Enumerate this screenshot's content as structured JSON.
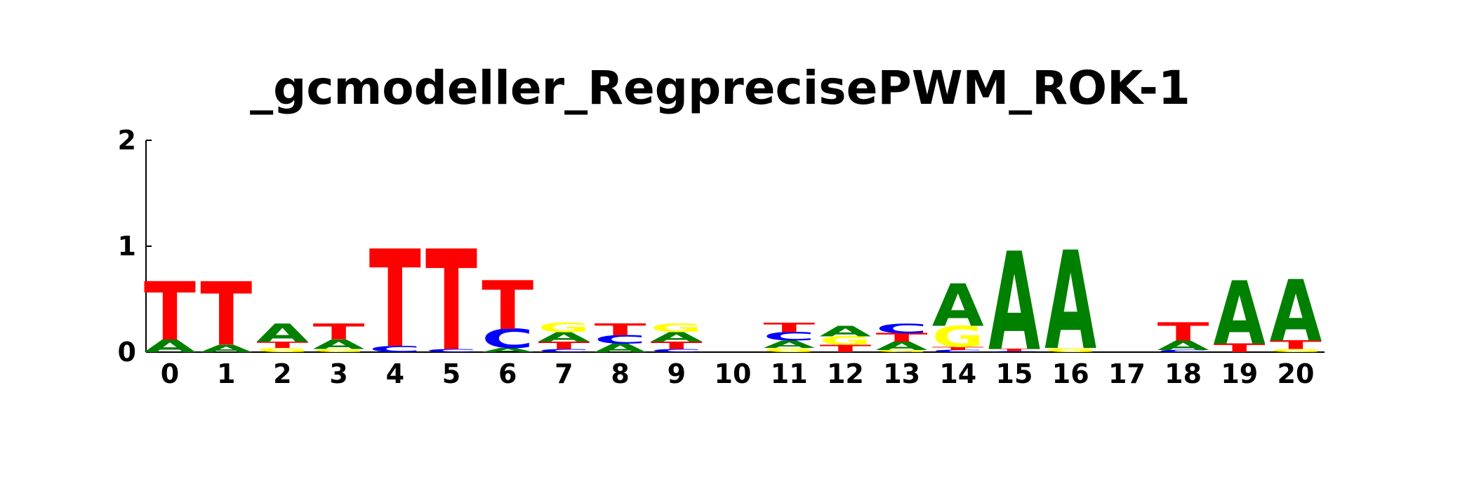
{
  "chart_data": {
    "type": "sequence-logo",
    "title": "_gcmodeller_RegprecisePWM_ROK-1",
    "ylim": [
      0,
      2
    ],
    "y_ticks": [
      "0",
      "1",
      "2"
    ],
    "x_ticks": [
      "0",
      "1",
      "2",
      "3",
      "4",
      "5",
      "6",
      "7",
      "8",
      "9",
      "10",
      "11",
      "12",
      "13",
      "14",
      "15",
      "16",
      "17",
      "18",
      "19",
      "20"
    ],
    "colors": {
      "A": "#008000",
      "C": "#0000ff",
      "G": "#ffff00",
      "T": "#ff0000"
    },
    "positions": [
      {
        "pos": "0",
        "stack": [
          {
            "base": "A",
            "height": 0.12
          },
          {
            "base": "T",
            "height": 0.55
          }
        ]
      },
      {
        "pos": "1",
        "stack": [
          {
            "base": "A",
            "height": 0.07
          },
          {
            "base": "T",
            "height": 0.6
          }
        ]
      },
      {
        "pos": "2",
        "stack": [
          {
            "base": "G",
            "height": 0.04
          },
          {
            "base": "T",
            "height": 0.06
          },
          {
            "base": "A",
            "height": 0.17
          }
        ]
      },
      {
        "pos": "3",
        "stack": [
          {
            "base": "G",
            "height": 0.03
          },
          {
            "base": "A",
            "height": 0.09
          },
          {
            "base": "T",
            "height": 0.15
          }
        ]
      },
      {
        "pos": "4",
        "stack": [
          {
            "base": "C",
            "height": 0.06
          },
          {
            "base": "T",
            "height": 0.92
          }
        ]
      },
      {
        "pos": "5",
        "stack": [
          {
            "base": "C",
            "height": 0.03
          },
          {
            "base": "T",
            "height": 0.95
          }
        ]
      },
      {
        "pos": "6",
        "stack": [
          {
            "base": "A",
            "height": 0.04
          },
          {
            "base": "C",
            "height": 0.18
          },
          {
            "base": "T",
            "height": 0.46
          }
        ]
      },
      {
        "pos": "7",
        "stack": [
          {
            "base": "C",
            "height": 0.03
          },
          {
            "base": "T",
            "height": 0.07
          },
          {
            "base": "A",
            "height": 0.09
          },
          {
            "base": "G",
            "height": 0.09
          }
        ]
      },
      {
        "pos": "8",
        "stack": [
          {
            "base": "A",
            "height": 0.08
          },
          {
            "base": "C",
            "height": 0.08
          },
          {
            "base": "T",
            "height": 0.11
          }
        ]
      },
      {
        "pos": "9",
        "stack": [
          {
            "base": "C",
            "height": 0.03
          },
          {
            "base": "T",
            "height": 0.07
          },
          {
            "base": "A",
            "height": 0.09
          },
          {
            "base": "G",
            "height": 0.08
          }
        ]
      },
      {
        "pos": "10",
        "stack": []
      },
      {
        "pos": "11",
        "stack": [
          {
            "base": "G",
            "height": 0.04
          },
          {
            "base": "A",
            "height": 0.07
          },
          {
            "base": "C",
            "height": 0.08
          },
          {
            "base": "T",
            "height": 0.09
          }
        ]
      },
      {
        "pos": "12",
        "stack": [
          {
            "base": "T",
            "height": 0.07
          },
          {
            "base": "G",
            "height": 0.08
          },
          {
            "base": "A",
            "height": 0.1
          }
        ]
      },
      {
        "pos": "13",
        "stack": [
          {
            "base": "G",
            "height": 0.02
          },
          {
            "base": "A",
            "height": 0.08
          },
          {
            "base": "T",
            "height": 0.08
          },
          {
            "base": "C",
            "height": 0.09
          }
        ]
      },
      {
        "pos": "14",
        "stack": [
          {
            "base": "C",
            "height": 0.02
          },
          {
            "base": "T",
            "height": 0.03
          },
          {
            "base": "G",
            "height": 0.2
          },
          {
            "base": "A",
            "height": 0.4
          }
        ]
      },
      {
        "pos": "15",
        "stack": [
          {
            "base": "C",
            "height": 0.01
          },
          {
            "base": "T",
            "height": 0.02
          },
          {
            "base": "A",
            "height": 0.93
          }
        ]
      },
      {
        "pos": "16",
        "stack": [
          {
            "base": "G",
            "height": 0.04
          },
          {
            "base": "A",
            "height": 0.93
          }
        ]
      },
      {
        "pos": "17",
        "stack": []
      },
      {
        "pos": "18",
        "stack": [
          {
            "base": "C",
            "height": 0.02
          },
          {
            "base": "A",
            "height": 0.09
          },
          {
            "base": "T",
            "height": 0.17
          }
        ]
      },
      {
        "pos": "19",
        "stack": [
          {
            "base": "T",
            "height": 0.08
          },
          {
            "base": "A",
            "height": 0.6
          }
        ]
      },
      {
        "pos": "20",
        "stack": [
          {
            "base": "G",
            "height": 0.03
          },
          {
            "base": "T",
            "height": 0.08
          },
          {
            "base": "A",
            "height": 0.58
          }
        ]
      }
    ]
  }
}
